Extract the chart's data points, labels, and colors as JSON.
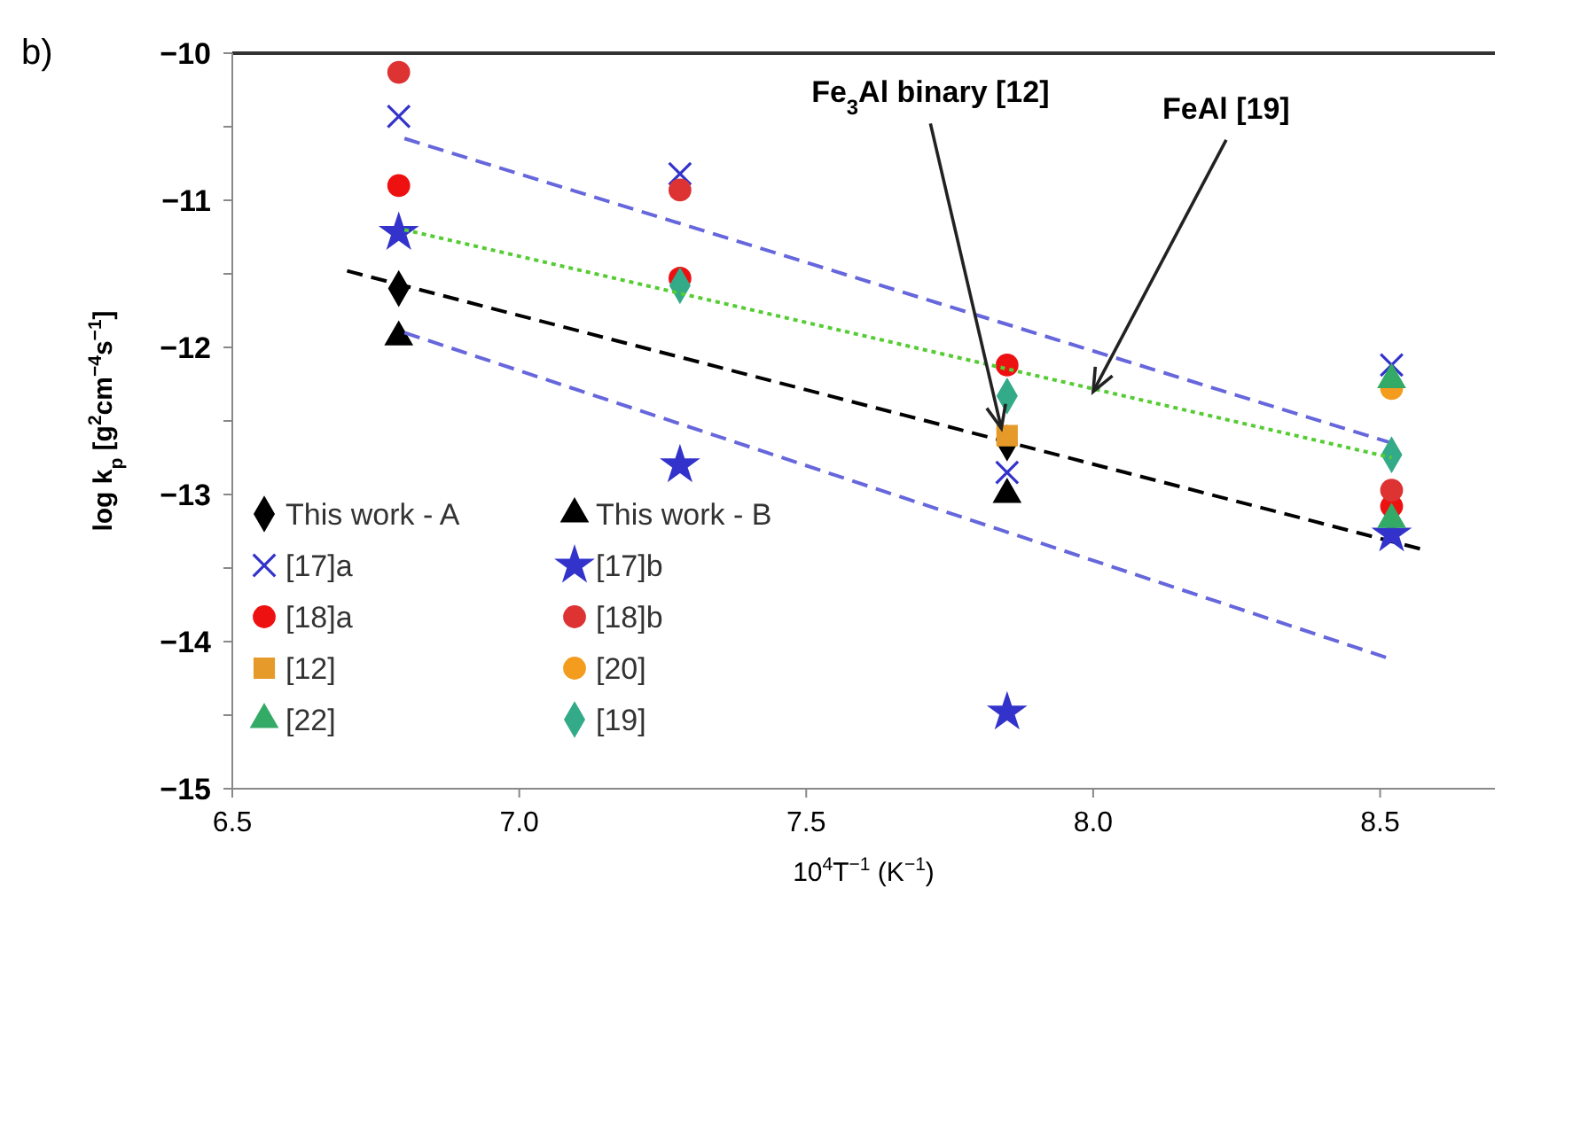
{
  "chart_data": {
    "type": "scatter",
    "xlabel": "10$^{4}$T$^{−1}$ (K$^{−1}$)",
    "ylabel": "log k$_{p}$ [g$^{2}$cm$^{−4}$s$^{−1}$]",
    "xlim": [
      6.5,
      8.7
    ],
    "ylim": [
      -15,
      -10
    ],
    "xticks": [
      6.5,
      {
        "value": 7,
        "label": "7.0"
      },
      7.5,
      {
        "value": 8,
        "label": "8.0"
      },
      8.5
    ],
    "yticks": [
      {
        "value": -15,
        "label": "−15"
      },
      {
        "value": -14.5,
        "label": null
      },
      {
        "value": -14,
        "label": "−14"
      },
      {
        "value": -13.5,
        "label": null
      },
      {
        "value": -13,
        "label": "−13"
      },
      {
        "value": -12.5,
        "label": null
      },
      {
        "value": -12,
        "label": "−12"
      },
      {
        "value": -11.5,
        "label": null
      },
      {
        "value": -11,
        "label": "−11"
      },
      {
        "value": -10.5,
        "label": null
      },
      {
        "value": -10,
        "label": "−10"
      }
    ],
    "grid": false,
    "legend": "bottom left",
    "annotations": [
      "b)",
      {
        "text": "Fe$_{3}$Al binary [12]",
        "x": 7.84,
        "y": -12.55
      },
      {
        "text": "FeAl [19]",
        "x": 8.0,
        "y": -12.3
      }
    ],
    "series": [
      {
        "name": "This work - A",
        "type": "scatter",
        "marker": "diamond",
        "color": "#000000",
        "x": [
          6.79,
          7.85
        ],
        "values": [
          -11.6,
          -12.65
        ]
      },
      {
        "type": "line",
        "marker": "none",
        "line_style": "dashed",
        "color": "#000000",
        "x": [
          6.7,
          8.58
        ],
        "values": [
          -11.48,
          -13.38
        ]
      },
      {
        "name": "This work - B",
        "type": "scatter",
        "marker": "triangle",
        "color": "#000000",
        "x": [
          6.79,
          7.85
        ],
        "values": [
          -11.93,
          -13.0
        ]
      },
      {
        "name": "[17]a",
        "type": "scatter",
        "marker": "cross",
        "color": "#3333cc",
        "x": [
          6.79,
          7.28,
          7.85,
          8.52
        ],
        "values": [
          -10.43,
          -10.82,
          -12.85,
          -12.12
        ]
      },
      {
        "type": "line",
        "marker": "none",
        "line_style": "dashed",
        "color": "#6666dd",
        "x": [
          6.8,
          8.52
        ],
        "values": [
          -10.58,
          -12.65
        ]
      },
      {
        "name": "[17]b",
        "type": "scatter",
        "marker": "star",
        "color": "#3333cc",
        "x": [
          6.79,
          7.28,
          7.85,
          8.52
        ],
        "values": [
          -11.22,
          -12.8,
          -14.48,
          -13.27
        ]
      },
      {
        "type": "line",
        "marker": "none",
        "line_style": "dashed",
        "color": "#6666dd",
        "x": [
          6.8,
          8.52
        ],
        "values": [
          -11.9,
          -14.12
        ]
      },
      {
        "name": "[18]a",
        "type": "scatter",
        "marker": "circle",
        "color": "#ee1111",
        "x": [
          6.79,
          7.28,
          7.85,
          8.52
        ],
        "values": [
          -10.9,
          -11.53,
          -12.12,
          -13.08
        ]
      },
      {
        "name": "[18]b",
        "type": "scatter",
        "marker": "circle",
        "color": "#dd3333",
        "x": [
          6.79,
          7.28,
          8.52
        ],
        "values": [
          -10.13,
          -10.93,
          -12.97
        ]
      },
      {
        "name": "[12]",
        "type": "scatter",
        "marker": "square",
        "color": "#e69a2a",
        "x": [
          7.85
        ],
        "values": [
          -12.6
        ]
      },
      {
        "name": "[20]",
        "type": "scatter",
        "marker": "circle",
        "color": "#f39c1e",
        "x": [
          8.52
        ],
        "values": [
          -12.28
        ]
      },
      {
        "name": "[22]",
        "type": "scatter",
        "marker": "triangle",
        "color": "#33aa66",
        "x": [
          8.52,
          8.52
        ],
        "values": [
          -12.22,
          -13.17
        ]
      },
      {
        "name": "[19]",
        "type": "scatter",
        "marker": "diamond",
        "color": "#33aa88",
        "x": [
          7.28,
          7.85,
          8.52
        ],
        "values": [
          -11.58,
          -12.33,
          -12.73
        ]
      },
      {
        "type": "line",
        "marker": "none",
        "line_style": "dotted",
        "color": "#55cc33",
        "x": [
          6.8,
          8.52
        ],
        "values": [
          -11.2,
          -12.75
        ]
      }
    ]
  }
}
